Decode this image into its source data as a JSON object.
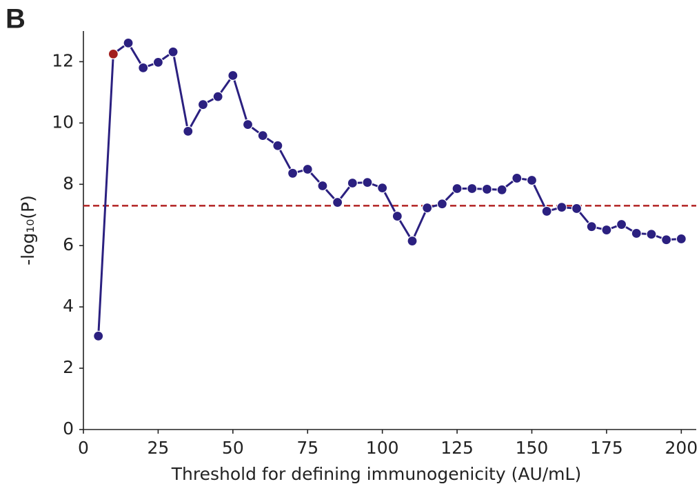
{
  "chart_data": {
    "type": "line",
    "panel_label": "B",
    "xlabel": "Threshold for defining immunogenicity (AU/mL)",
    "ylabel": "-log₁₀(P)",
    "x": [
      5,
      10,
      15,
      20,
      25,
      30,
      35,
      40,
      45,
      50,
      55,
      60,
      65,
      70,
      75,
      80,
      85,
      90,
      95,
      100,
      105,
      110,
      115,
      120,
      125,
      130,
      135,
      140,
      145,
      150,
      155,
      160,
      165,
      170,
      175,
      180,
      185,
      190,
      195,
      200
    ],
    "series": [
      {
        "color": "#2b2080",
        "highlight_index": 1,
        "highlight_color": "#a31f1f",
        "values": [
          3.05,
          12.25,
          12.61,
          11.8,
          11.98,
          12.32,
          9.73,
          10.6,
          10.86,
          11.55,
          9.95,
          9.59,
          9.26,
          8.36,
          8.49,
          7.95,
          7.41,
          8.04,
          8.06,
          7.88,
          6.96,
          6.15,
          7.23,
          7.36,
          7.86,
          7.86,
          7.84,
          7.82,
          8.2,
          8.13,
          7.12,
          7.25,
          7.21,
          6.62,
          6.51,
          6.69,
          6.4,
          6.37,
          6.19,
          6.22
        ]
      }
    ],
    "hline": {
      "value": 7.3,
      "color": "#b22222"
    },
    "xlim": [
      0,
      205
    ],
    "ylim": [
      0,
      13
    ],
    "xticks": [
      0,
      25,
      50,
      75,
      100,
      125,
      150,
      175,
      200
    ],
    "yticks": [
      0,
      2,
      4,
      6,
      8,
      10,
      12
    ]
  }
}
